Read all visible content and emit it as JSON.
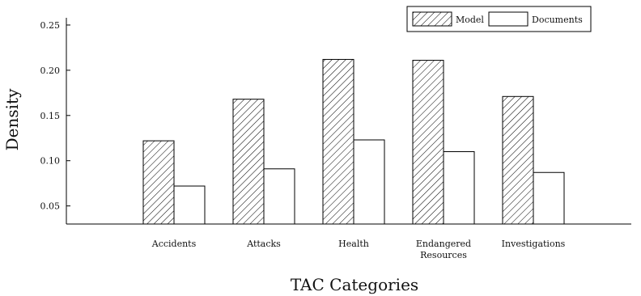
{
  "chart_data": {
    "type": "bar",
    "categories": [
      [
        "Accidents"
      ],
      [
        "Attacks"
      ],
      [
        "Health"
      ],
      [
        "Endangered",
        "Resources"
      ],
      [
        "Investigations"
      ]
    ],
    "series": [
      {
        "name": "Model",
        "values": [
          0.122,
          0.168,
          0.212,
          0.211,
          0.171
        ],
        "fill": "hatch"
      },
      {
        "name": "Documents",
        "values": [
          0.072,
          0.091,
          0.123,
          0.11,
          0.087
        ],
        "fill": "#ffffff"
      }
    ],
    "title": "",
    "xlabel": "TAC Categories",
    "ylabel": "Density",
    "ylim": [
      0.03,
      0.258
    ],
    "yticks": [
      0.05,
      0.1,
      0.15,
      0.2,
      0.25
    ],
    "ytick_labels": [
      "0.05",
      "0.10",
      "0.15",
      "0.20",
      "0.25"
    ],
    "grid": false,
    "legend_position": "top-right",
    "colors": {
      "axis": "#000000",
      "bar_stroke": "#000000",
      "hatch": "#000000"
    }
  }
}
